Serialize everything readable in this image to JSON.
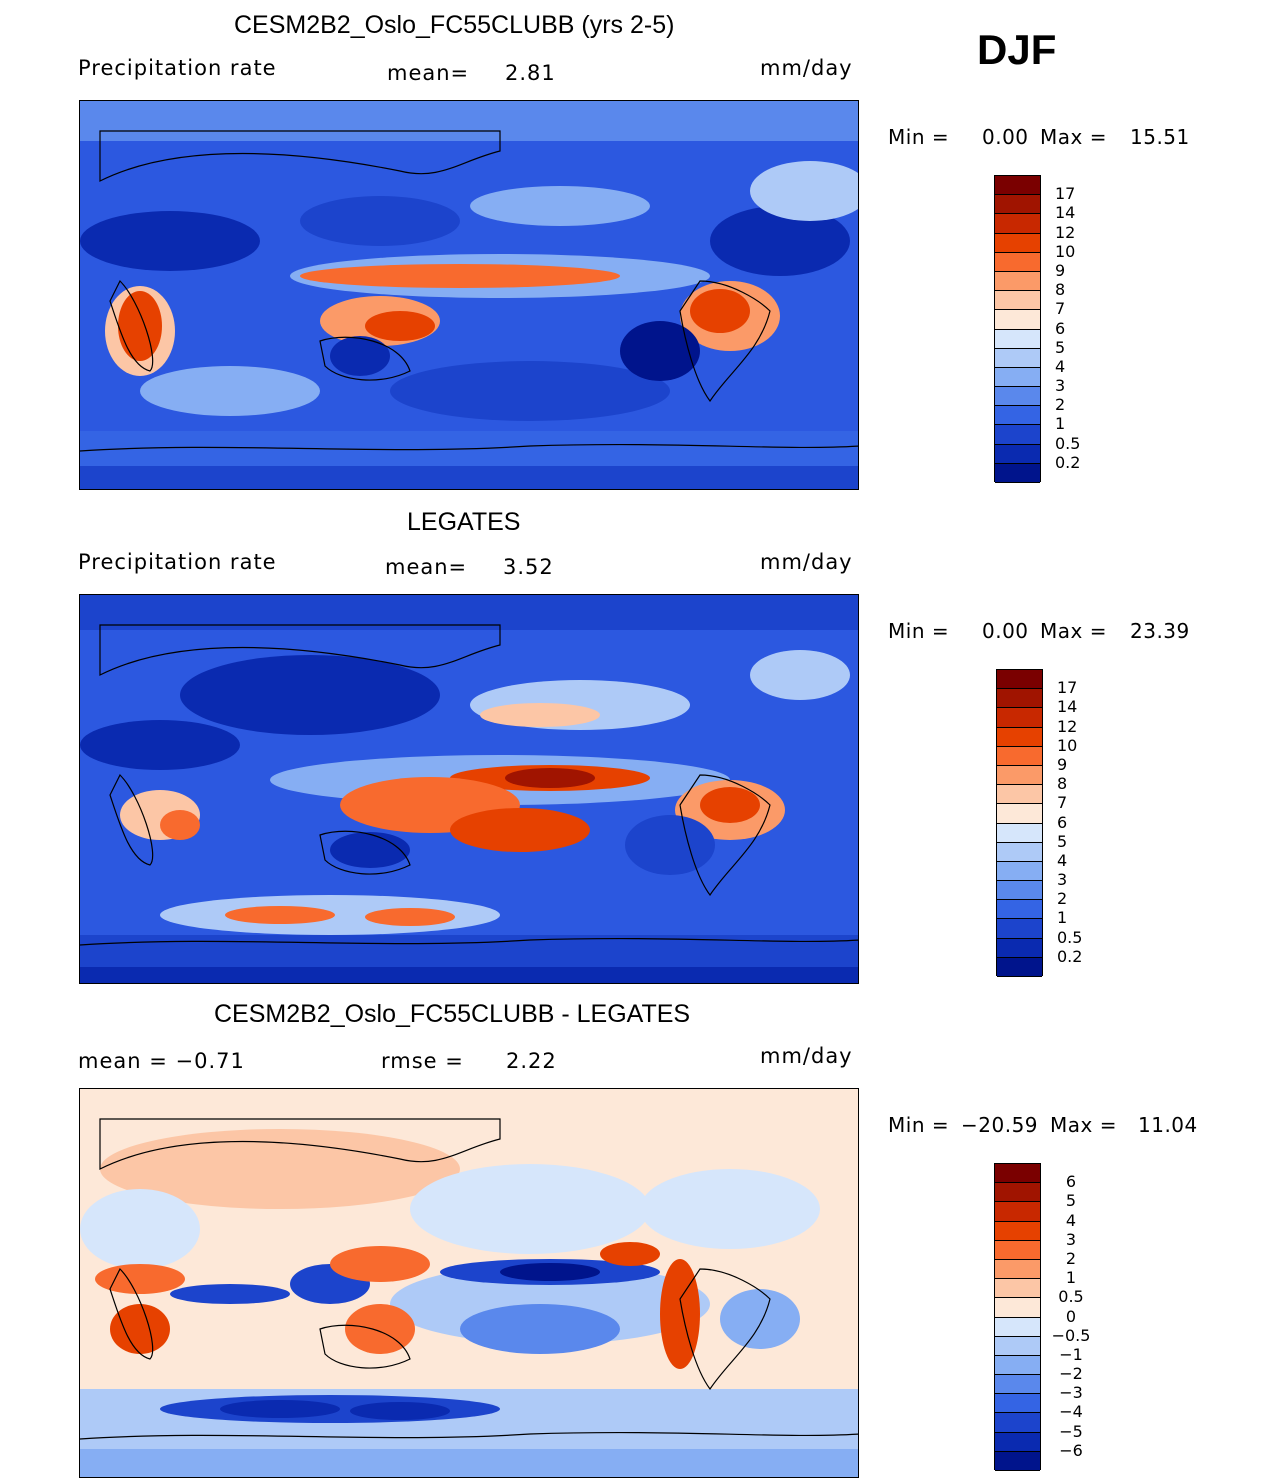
{
  "season_label": "DJF",
  "panels": [
    {
      "title": "CESM2B2_Oslo_FC55CLUBB (yrs 2-5)",
      "left_label": "Precipitation  rate",
      "mean_label": "mean=",
      "mean_value": "2.81",
      "units": "mm/day",
      "min_label": "Min  =",
      "min_value": "0.00",
      "max_label": "Max  =",
      "max_value": "15.51",
      "colorbar_ticks": [
        "17",
        "14",
        "12",
        "10",
        "9",
        "8",
        "7",
        "6",
        "5",
        "4",
        "3",
        "2",
        "1",
        "0.5",
        "0.2"
      ]
    },
    {
      "title": "LEGATES",
      "left_label": "Precipitation  rate",
      "mean_label": "mean=",
      "mean_value": "3.52",
      "units": "mm/day",
      "min_label": "Min  =",
      "min_value": "0.00",
      "max_label": "Max  =",
      "max_value": "23.39",
      "colorbar_ticks": [
        "17",
        "14",
        "12",
        "10",
        "9",
        "8",
        "7",
        "6",
        "5",
        "4",
        "3",
        "2",
        "1",
        "0.5",
        "0.2"
      ]
    },
    {
      "title": "CESM2B2_Oslo_FC55CLUBB - LEGATES",
      "left_label": "mean  =   −0.71",
      "rmse_label": "rmse  =",
      "rmse_value": "2.22",
      "units": "mm/day",
      "min_label": "Min  =",
      "min_value": "−20.59",
      "max_label": "Max  =",
      "max_value": "11.04",
      "colorbar_ticks": [
        "6",
        "5",
        "4",
        "3",
        "2",
        "1",
        "0.5",
        "0",
        "−0.5",
        "−1",
        "−2",
        "−3",
        "−4",
        "−5",
        "−6"
      ]
    }
  ],
  "colors": {
    "precip_scale": [
      "#7a0000",
      "#a01400",
      "#c82800",
      "#e64100",
      "#f86a2e",
      "#fb9a68",
      "#fcc6a6",
      "#fde8d8",
      "#d6e6fb",
      "#aecaf7",
      "#86aef3",
      "#5a88ec",
      "#3464e4",
      "#1c44cc",
      "#0a2ab0",
      "#00148c"
    ],
    "diff_scale": [
      "#7a0000",
      "#a01400",
      "#c82800",
      "#e64100",
      "#f86a2e",
      "#fb9a68",
      "#fcc6a6",
      "#fde8d8",
      "#d6e6fb",
      "#aecaf7",
      "#86aef3",
      "#5a88ec",
      "#3464e4",
      "#1c44cc",
      "#0a2ab0",
      "#00148c"
    ]
  }
}
